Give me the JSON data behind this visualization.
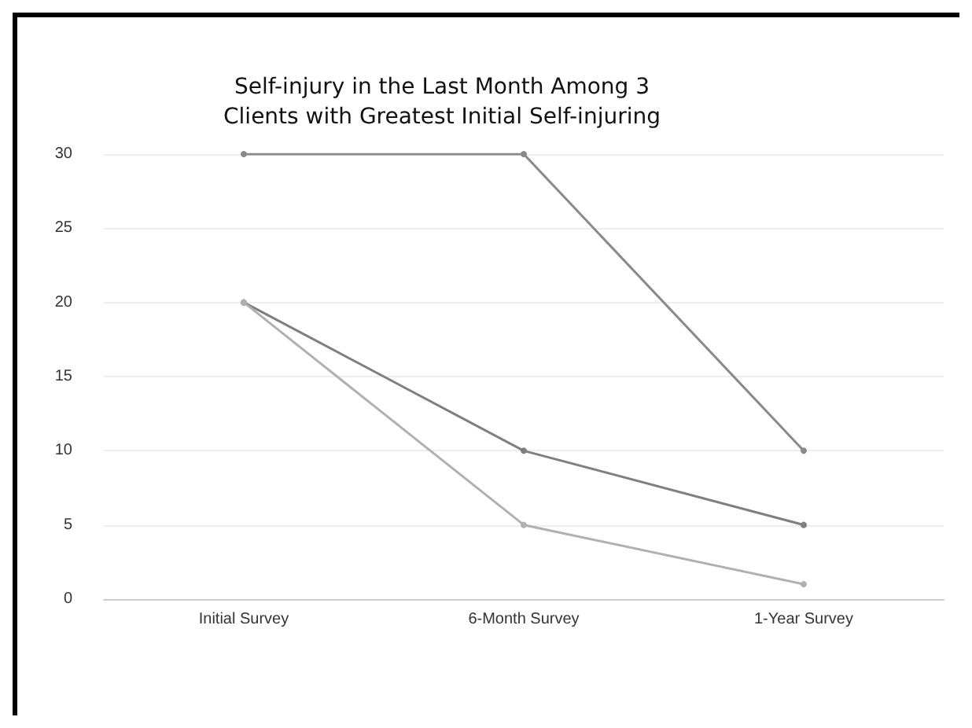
{
  "chart_data": {
    "type": "line",
    "title": "Self-injury in the Last Month Among 3\nClients with Greatest Initial Self-injuring",
    "categories": [
      "Initial Survey",
      "6-Month Survey",
      "1-Year Survey"
    ],
    "series": [
      {
        "color": "#8a8a8a",
        "values": [
          30,
          30,
          10
        ]
      },
      {
        "color": "#7f7f7f",
        "values": [
          20,
          10,
          5
        ]
      },
      {
        "color": "#b0b0b0",
        "values": [
          20,
          5,
          1
        ]
      }
    ],
    "ylim": [
      0,
      30
    ],
    "yticks": [
      0,
      5,
      10,
      15,
      20,
      25,
      30
    ],
    "grid": "y",
    "marker": "circle",
    "line_style": "solid"
  }
}
